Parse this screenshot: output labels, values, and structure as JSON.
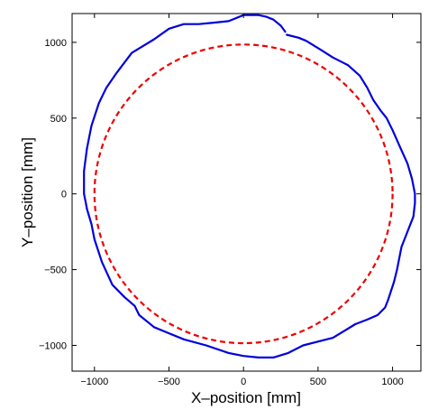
{
  "chart_data": {
    "type": "line",
    "title": "",
    "xlabel": "X–position [mm]",
    "ylabel": "Y–position [mm]",
    "xlim": [
      -1150,
      1190
    ],
    "ylim": [
      -1170,
      1190
    ],
    "xticks": [
      -1000,
      -500,
      0,
      500,
      1000
    ],
    "yticks": [
      -1000,
      -500,
      0,
      500,
      1000
    ],
    "xtick_labels": [
      "−1000",
      "−500",
      "0",
      "500",
      "1000"
    ],
    "ytick_labels": [
      "−1000",
      "−500",
      "0",
      "500",
      "1000"
    ],
    "grid": false,
    "legend": "none",
    "series": [
      {
        "style": "solid",
        "color": "#0000dd",
        "x": [
          290,
          370,
          420,
          520,
          600,
          700,
          780,
          830,
          870,
          920,
          960,
          1000,
          1050,
          1100,
          1130,
          1150,
          1150,
          1140,
          1100,
          1080,
          1060,
          1030,
          1010,
          970,
          950,
          900,
          830,
          750,
          600,
          400,
          300,
          200,
          100,
          0,
          -100,
          -250,
          -400,
          -500,
          -600,
          -700,
          -730,
          -800,
          -880,
          -950,
          -1000,
          -1020,
          -1050,
          -1060,
          -1070,
          -1070,
          -1050,
          -1020,
          -970,
          -920,
          -850,
          -750,
          -700,
          -600,
          -500,
          -400,
          -300,
          -200,
          -100,
          0,
          100,
          150,
          200,
          250,
          280
        ],
        "y": [
          1050,
          1030,
          1010,
          950,
          900,
          850,
          780,
          700,
          620,
          550,
          500,
          420,
          310,
          200,
          100,
          0,
          -60,
          -150,
          -250,
          -300,
          -350,
          -500,
          -580,
          -700,
          -750,
          -800,
          -830,
          -860,
          -950,
          -1000,
          -1050,
          -1080,
          -1080,
          -1070,
          -1050,
          -1000,
          -960,
          -920,
          -880,
          -800,
          -740,
          -680,
          -600,
          -450,
          -300,
          -200,
          -100,
          -50,
          0,
          150,
          300,
          450,
          600,
          700,
          800,
          930,
          960,
          1020,
          1090,
          1120,
          1120,
          1130,
          1140,
          1180,
          1180,
          1170,
          1150,
          1110,
          1070
        ]
      },
      {
        "style": "dashed",
        "color": "#ee0000",
        "shape": "circle",
        "center": [
          0,
          0
        ],
        "radius": 1000
      }
    ]
  }
}
